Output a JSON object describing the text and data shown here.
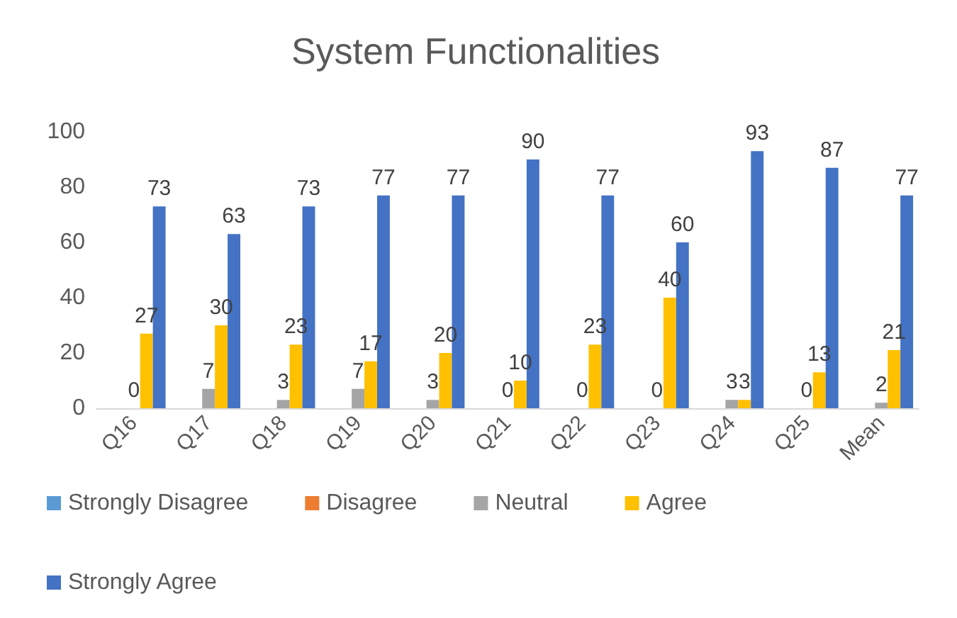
{
  "chart_data": {
    "type": "bar",
    "title": "System Functionalities",
    "categories": [
      "Q16",
      "Q17",
      "Q18",
      "Q19",
      "Q20",
      "Q21",
      "Q22",
      "Q23",
      "Q24",
      "Q25",
      "Mean"
    ],
    "series": [
      {
        "name": "Strongly Disagree",
        "color": "#5b9bd5",
        "values": [
          null,
          null,
          null,
          null,
          null,
          null,
          null,
          null,
          null,
          null,
          null
        ]
      },
      {
        "name": "Disagree",
        "color": "#ed7d31",
        "values": [
          null,
          null,
          null,
          null,
          null,
          null,
          null,
          null,
          null,
          null,
          null
        ]
      },
      {
        "name": "Neutral",
        "color": "#a5a5a5",
        "values": [
          0,
          7,
          3,
          7,
          3,
          0,
          0,
          0,
          3,
          0,
          2
        ]
      },
      {
        "name": "Agree",
        "color": "#ffc000",
        "values": [
          27,
          30,
          23,
          17,
          20,
          10,
          23,
          40,
          3,
          13,
          21
        ]
      },
      {
        "name": "Strongly Agree",
        "color": "#4472c4",
        "values": [
          73,
          63,
          73,
          77,
          77,
          90,
          77,
          60,
          93,
          87,
          77
        ]
      }
    ],
    "ylim": [
      0,
      100
    ],
    "yticks": [
      0,
      20,
      40,
      60,
      80,
      100
    ],
    "grid": false,
    "legend": "bottom",
    "data_labels": true
  }
}
